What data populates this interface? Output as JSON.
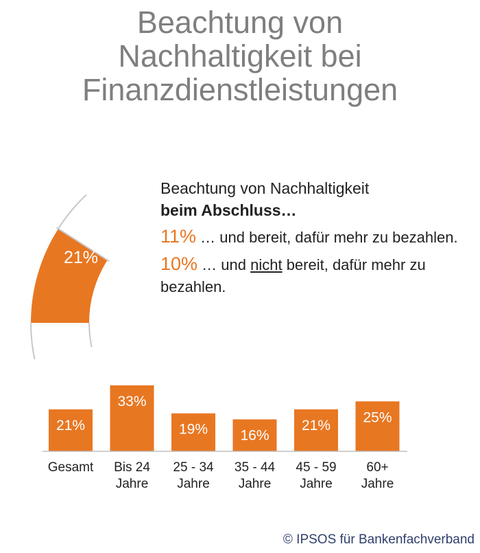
{
  "title": [
    "Beachtung von",
    "Nachhaltigkeit bei",
    "Finanzdienstleistungen"
  ],
  "gauge": {
    "value_label": "21%",
    "value": 21,
    "color": "#e87722",
    "outline_color": "#c8c8c8"
  },
  "callout": {
    "heading_line1": "Beachtung von Nachhaltigkeit",
    "heading_line2": "beim Abschluss…",
    "item1": {
      "pct": "11%",
      "text": " … und bereit, dafür mehr zu bezahlen."
    },
    "item2": {
      "pct": "10%",
      "text_before": " … und ",
      "text_underlined": "nicht",
      "text_after": " bereit, dafür mehr zu bezahlen."
    }
  },
  "chart_data": {
    "type": "bar",
    "categories": [
      [
        "Gesamt"
      ],
      [
        "Bis 24",
        "Jahre"
      ],
      [
        "25 - 34",
        "Jahre"
      ],
      [
        "35 - 44",
        "Jahre"
      ],
      [
        "45 - 59",
        "Jahre"
      ],
      [
        "60+",
        "Jahre"
      ]
    ],
    "values": [
      21,
      33,
      19,
      16,
      21,
      25
    ],
    "data_labels": [
      "21%",
      "33%",
      "19%",
      "16%",
      "21%",
      "25%"
    ],
    "ylim": [
      0,
      33
    ],
    "color": "#e87722",
    "axis_color": "#bfbfbf"
  },
  "source": "© IPSOS für Bankenfachverband"
}
